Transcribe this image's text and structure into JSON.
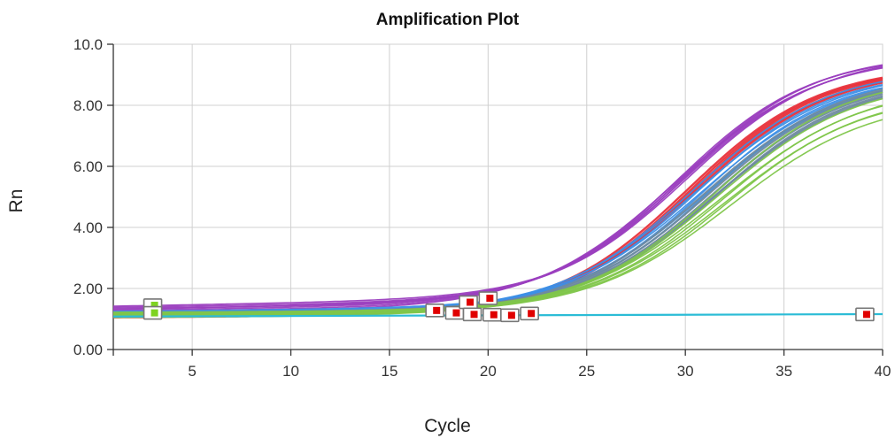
{
  "chart_data": {
    "type": "line",
    "title": "Amplification Plot",
    "xlabel": "Cycle",
    "ylabel": "Rn",
    "xlim": [
      1,
      40
    ],
    "ylim": [
      0,
      10
    ],
    "x_ticks": [
      5,
      10,
      15,
      20,
      25,
      30,
      35,
      40
    ],
    "y_ticks": [
      0,
      2,
      4,
      6,
      8,
      10
    ],
    "y_tick_labels": [
      "0.00",
      "2.00",
      "4.00",
      "6.00",
      "8.00",
      "10.0"
    ],
    "grid": true,
    "legend": "none",
    "series_groups": [
      {
        "color": "#9b3fbf",
        "count": 7,
        "baseline": [
          1.2,
          1.42
        ],
        "slope": [
          0.006,
          0.012
        ],
        "plateau": [
          9.2,
          9.4
        ],
        "midpoint": [
          29.5,
          30.1
        ],
        "steepness": [
          0.28,
          0.31
        ]
      },
      {
        "color": "#e8333c",
        "count": 5,
        "baseline": [
          1.05,
          1.12
        ],
        "slope": [
          0.003,
          0.005
        ],
        "plateau": [
          9.0,
          9.2
        ],
        "midpoint": [
          30.0,
          30.5
        ],
        "steepness": [
          0.29,
          0.31
        ]
      },
      {
        "color": "#3d8fe6",
        "count": 7,
        "baseline": [
          1.1,
          1.25
        ],
        "slope": [
          0.003,
          0.006
        ],
        "plateau": [
          8.7,
          9.1
        ],
        "midpoint": [
          30.4,
          31.2
        ],
        "steepness": [
          0.28,
          0.31
        ]
      },
      {
        "color": "#6f8aa0",
        "count": 5,
        "baseline": [
          1.1,
          1.2
        ],
        "slope": [
          0.002,
          0.004
        ],
        "plateau": [
          8.7,
          9.0
        ],
        "midpoint": [
          31.0,
          31.6
        ],
        "steepness": [
          0.28,
          0.3
        ]
      },
      {
        "color": "#7fc64a",
        "count": 7,
        "baseline": [
          1.05,
          1.22
        ],
        "slope": [
          0.002,
          0.004
        ],
        "plateau": [
          8.1,
          8.9
        ],
        "midpoint": [
          31.5,
          32.3
        ],
        "steepness": [
          0.27,
          0.3
        ]
      }
    ],
    "flat_series": {
      "color": "#2bbcd6",
      "y_start": 1.08,
      "y_end": 1.16
    },
    "markers": [
      {
        "x": 3.0,
        "y": 1.45,
        "fill": "#7ed321"
      },
      {
        "x": 3.0,
        "y": 1.2,
        "fill": "#7ed321"
      },
      {
        "x": 17.3,
        "y": 1.28,
        "fill": "#e00000"
      },
      {
        "x": 18.3,
        "y": 1.2,
        "fill": "#e00000"
      },
      {
        "x": 19.0,
        "y": 1.55,
        "fill": "#e00000"
      },
      {
        "x": 19.2,
        "y": 1.15,
        "fill": "#e00000"
      },
      {
        "x": 20.0,
        "y": 1.68,
        "fill": "#e00000"
      },
      {
        "x": 20.2,
        "y": 1.14,
        "fill": "#e00000"
      },
      {
        "x": 21.1,
        "y": 1.12,
        "fill": "#e00000"
      },
      {
        "x": 22.1,
        "y": 1.18,
        "fill": "#e00000"
      },
      {
        "x": 39.1,
        "y": 1.15,
        "fill": "#e00000"
      }
    ]
  }
}
